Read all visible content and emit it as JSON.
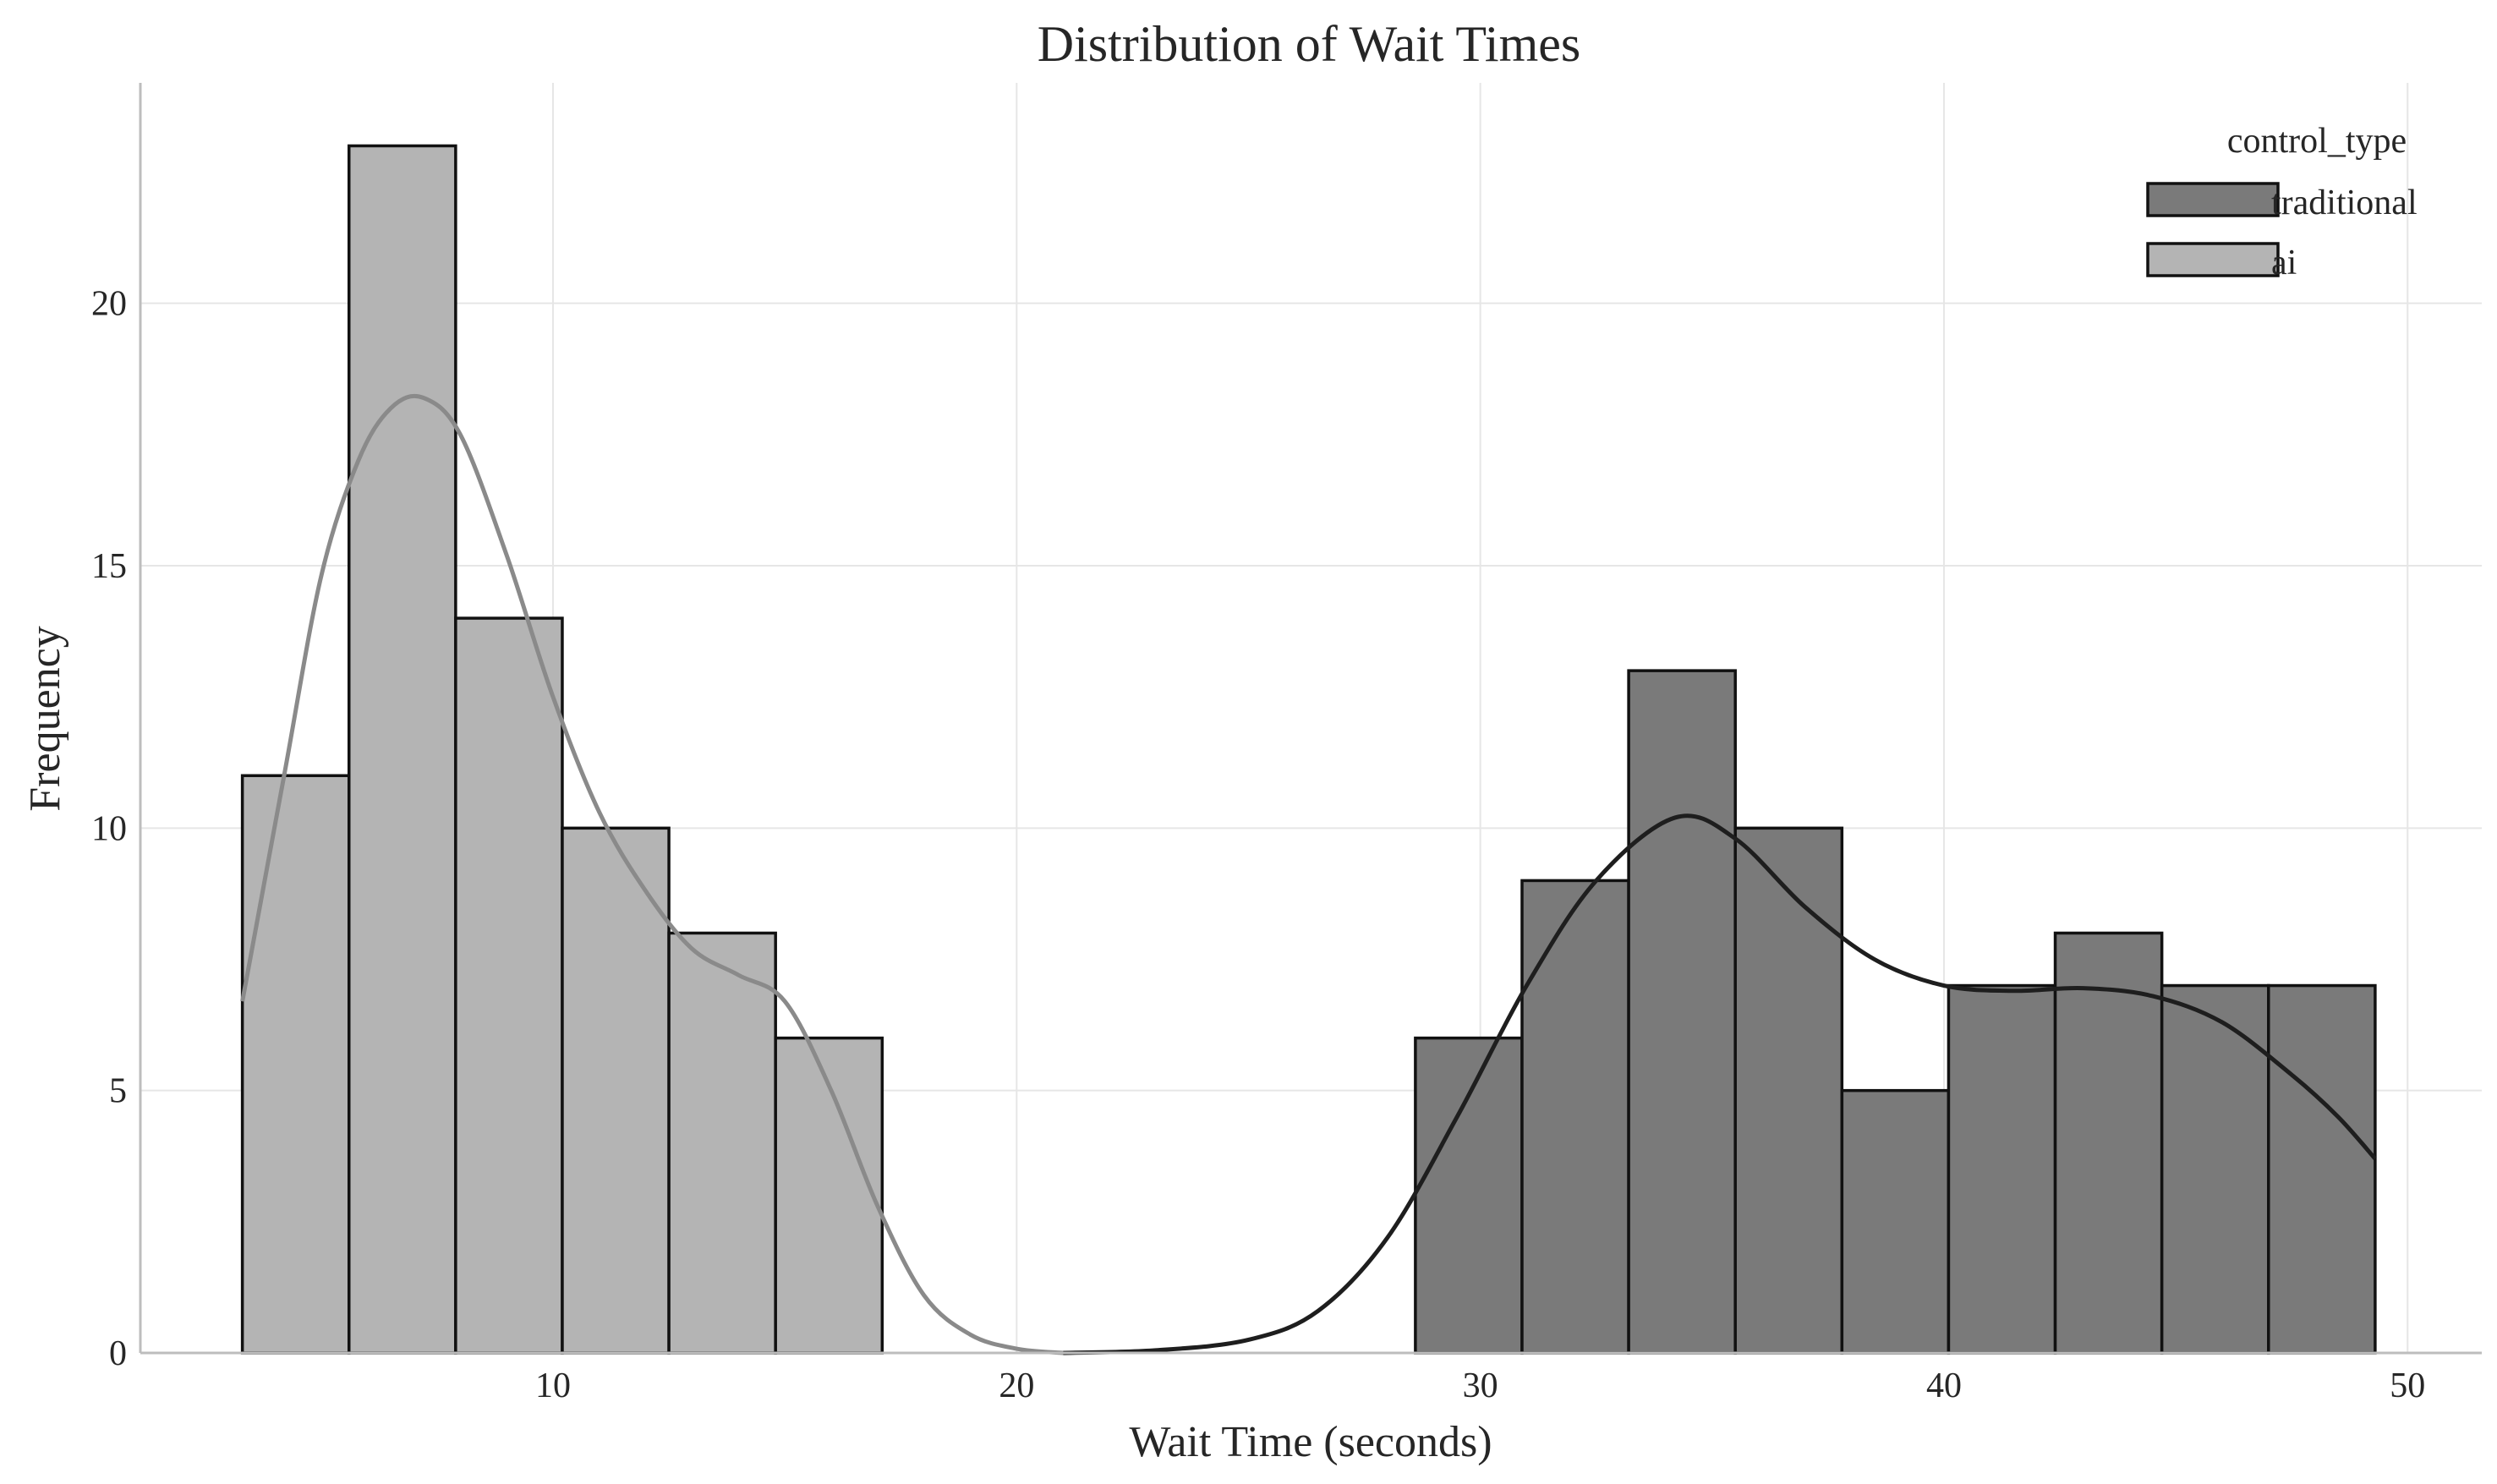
{
  "chart_data": {
    "type": "histogram",
    "title": "Distribution of Wait Times",
    "xlabel": "Wait Time (seconds)",
    "ylabel": "Frequency",
    "xlim": [
      1.1,
      51.6
    ],
    "ylim": [
      0,
      24.2
    ],
    "xticks": [
      10,
      20,
      30,
      40,
      50
    ],
    "yticks": [
      0,
      5,
      10,
      15,
      20
    ],
    "grid": true,
    "legend": {
      "title": "control_type",
      "position": "top-right"
    },
    "bin_width": 2.3,
    "series": [
      {
        "name": "traditional",
        "color": "#7a7a7a",
        "kde_color": "#1e1e1e",
        "bins": [
          {
            "x0": 28.6,
            "x1": 30.9,
            "count": 6
          },
          {
            "x0": 30.9,
            "x1": 33.2,
            "count": 9
          },
          {
            "x0": 33.2,
            "x1": 35.5,
            "count": 13
          },
          {
            "x0": 35.5,
            "x1": 37.8,
            "count": 10
          },
          {
            "x0": 37.8,
            "x1": 40.1,
            "count": 5
          },
          {
            "x0": 40.1,
            "x1": 42.4,
            "count": 7
          },
          {
            "x0": 42.4,
            "x1": 44.7,
            "count": 8
          },
          {
            "x0": 44.7,
            "x1": 47.0,
            "count": 7
          },
          {
            "x0": 47.0,
            "x1": 49.3,
            "count": 7
          }
        ],
        "kde": [
          [
            21.0,
            0.0
          ],
          [
            23,
            0.05
          ],
          [
            25,
            0.25
          ],
          [
            26.5,
            0.8
          ],
          [
            28,
            2.2
          ],
          [
            29.5,
            4.5
          ],
          [
            31,
            7.0
          ],
          [
            32.5,
            9.0
          ],
          [
            34.2,
            10.2
          ],
          [
            35.5,
            9.8
          ],
          [
            37,
            8.5
          ],
          [
            38.5,
            7.5
          ],
          [
            40,
            7.0
          ],
          [
            41.5,
            6.9
          ],
          [
            43,
            6.95
          ],
          [
            44.5,
            6.8
          ],
          [
            46,
            6.3
          ],
          [
            47.5,
            5.3
          ],
          [
            48.5,
            4.5
          ],
          [
            49.3,
            3.7
          ]
        ]
      },
      {
        "name": "ai",
        "color": "#b4b4b4",
        "kde_color": "#8a8a8a",
        "bins": [
          {
            "x0": 3.3,
            "x1": 5.6,
            "count": 11
          },
          {
            "x0": 5.6,
            "x1": 7.9,
            "count": 23
          },
          {
            "x0": 7.9,
            "x1": 10.2,
            "count": 14
          },
          {
            "x0": 10.2,
            "x1": 12.5,
            "count": 10
          },
          {
            "x0": 12.5,
            "x1": 14.8,
            "count": 8
          },
          {
            "x0": 14.8,
            "x1": 17.1,
            "count": 6
          }
        ],
        "kde": [
          [
            3.3,
            6.7
          ],
          [
            4.2,
            11.0
          ],
          [
            5.0,
            14.8
          ],
          [
            5.8,
            17.0
          ],
          [
            6.5,
            18.0
          ],
          [
            7.2,
            18.2
          ],
          [
            8.0,
            17.5
          ],
          [
            9.0,
            15.2
          ],
          [
            10.0,
            12.5
          ],
          [
            11.0,
            10.3
          ],
          [
            12.0,
            8.8
          ],
          [
            13.0,
            7.7
          ],
          [
            14.0,
            7.2
          ],
          [
            15.0,
            6.7
          ],
          [
            16.0,
            5.0
          ],
          [
            17.0,
            2.8
          ],
          [
            18.0,
            1.1
          ],
          [
            19.0,
            0.35
          ],
          [
            20.0,
            0.08
          ],
          [
            21.0,
            0.0
          ]
        ]
      }
    ]
  }
}
